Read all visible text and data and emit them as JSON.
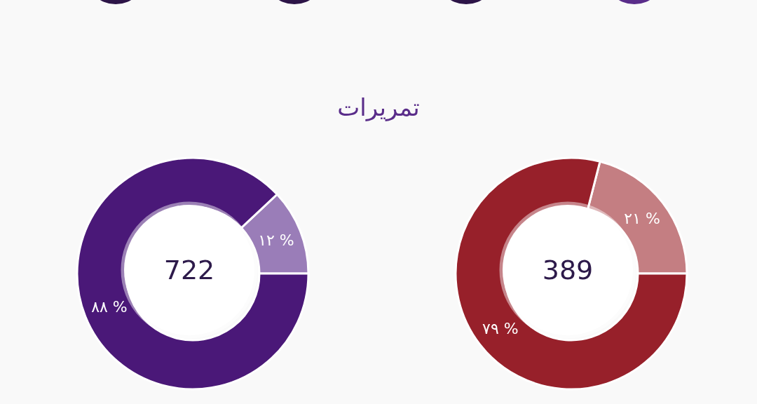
{
  "chart_data": [
    {
      "type": "donut",
      "title": "تمريرات",
      "categories": [
        null,
        null
      ],
      "values": [
        12,
        88
      ],
      "colors": [
        "#9a7db8",
        "#4a1878"
      ],
      "value_labels": [
        "١٢ %",
        "٨٨ %"
      ],
      "annotations": [
        "722"
      ]
    },
    {
      "type": "donut",
      "categories": [
        null,
        null
      ],
      "values": [
        21,
        79
      ],
      "colors": [
        "#c47e82",
        "#97202a"
      ],
      "value_labels": [
        "٢١ %",
        "٧٩ %"
      ],
      "annotations": [
        "389"
      ]
    }
  ]
}
